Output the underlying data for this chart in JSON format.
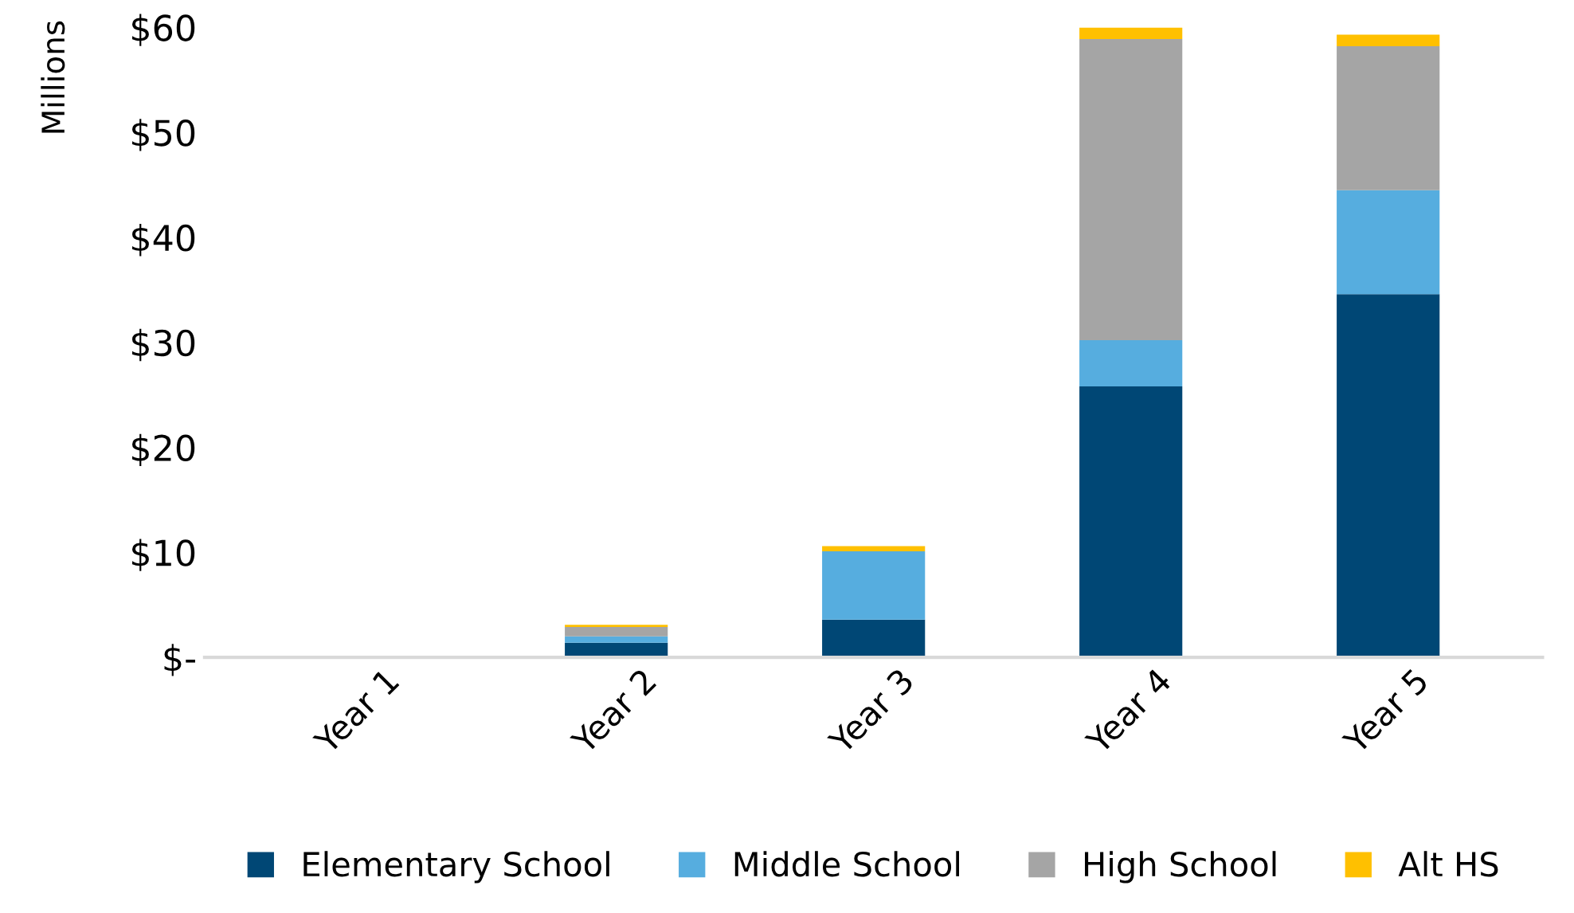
{
  "chart_data": {
    "type": "bar",
    "stacked": true,
    "ylabel": "Millions",
    "categories": [
      "Year 1",
      "Year 2",
      "Year 3",
      "Year 4",
      "Year 5"
    ],
    "series": [
      {
        "name": "Elementary School",
        "color": "#004775",
        "values": [
          null,
          1.4,
          3.6,
          25.8,
          34.6
        ]
      },
      {
        "name": "Middle School",
        "color": "#56addf",
        "values": [
          null,
          0.6,
          6.5,
          4.4,
          9.9
        ]
      },
      {
        "name": "High School",
        "color": "#a5a5a5",
        "values": [
          null,
          0.9,
          null,
          28.7,
          13.7
        ]
      },
      {
        "name": "Alt HS",
        "color": "#ffc000",
        "values": [
          null,
          0.2,
          0.5,
          1.1,
          1.1
        ]
      }
    ],
    "ylim": [
      0,
      60
    ],
    "yticks": [
      {
        "value": 0,
        "label": "$-"
      },
      {
        "value": 10,
        "label": "$10"
      },
      {
        "value": 20,
        "label": "$20"
      },
      {
        "value": 30,
        "label": "$30"
      },
      {
        "value": 40,
        "label": "$40"
      },
      {
        "value": 50,
        "label": "$50"
      },
      {
        "value": 60,
        "label": "$60"
      }
    ],
    "grid": false,
    "legend": "bottom"
  }
}
